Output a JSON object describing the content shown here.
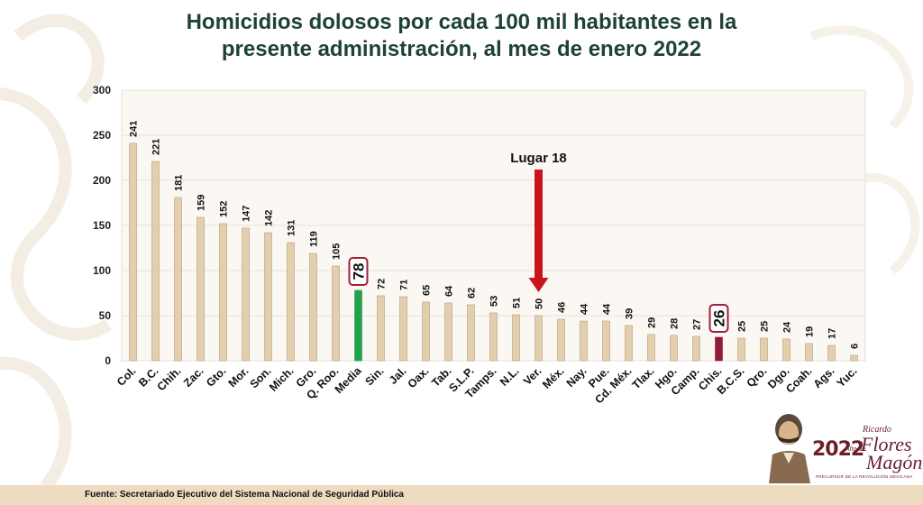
{
  "chart_data": {
    "type": "bar",
    "title": [
      "Homicidios dolosos por cada 100 mil habitantes en la",
      "presente administración, al mes de enero 2022"
    ],
    "categories": [
      "Col.",
      "B.C.",
      "Chih.",
      "Zac.",
      "Gto.",
      "Mor.",
      "Son.",
      "Mich.",
      "Gro.",
      "Q. Roo.",
      "Media",
      "Sin.",
      "Jal.",
      "Oax.",
      "Tab.",
      "S.L.P.",
      "Tamps.",
      "N.L.",
      "Ver.",
      "Méx.",
      "Nay.",
      "Pue.",
      "Cd. Méx.",
      "Tlax.",
      "Hgo.",
      "Camp.",
      "Chis.",
      "B.C.S.",
      "Qro.",
      "Dgo.",
      "Coah.",
      "Ags.",
      "Yuc."
    ],
    "values": [
      241,
      221,
      181,
      159,
      152,
      147,
      142,
      131,
      119,
      105,
      78,
      72,
      71,
      65,
      64,
      62,
      53,
      51,
      50,
      46,
      44,
      44,
      39,
      29,
      28,
      27,
      26,
      25,
      25,
      24,
      19,
      17,
      6
    ],
    "ylim": [
      0,
      300
    ],
    "yticks": [
      0,
      50,
      100,
      150,
      200,
      250,
      300
    ],
    "grid": true,
    "colors": {
      "default": "#e3cfae",
      "default_stroke": "#b59c78",
      "highlight_mean": "#22a04c",
      "highlight_state": "#8e1e37",
      "arrow": "#c8141b",
      "boxed_label_border": "#a31f36"
    },
    "highlights": {
      "Media": "highlight_mean",
      "Chis.": "highlight_state"
    },
    "boxed_labels": [
      "Media",
      "Chis."
    ],
    "annotation": {
      "text": "Lugar 18",
      "category": "Ver.",
      "arrow": "down"
    }
  },
  "footer": {
    "source": "Fuente: Secretariado Ejecutivo del Sistema Nacional de Seguridad Pública"
  },
  "logo": {
    "year": "2022",
    "ano_de": "Año de",
    "first_name": "Ricardo",
    "last_name_1": "Flores",
    "last_name_2": "Magón",
    "tagline": "PRECURSOR DE LA REVOLUCIÓN MEXICANA"
  }
}
